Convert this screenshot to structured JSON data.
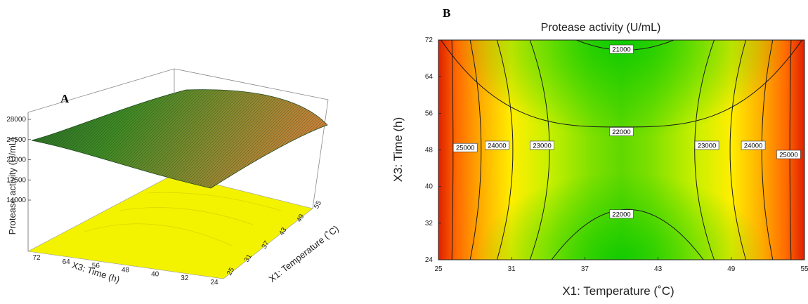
{
  "chart_data": [
    {
      "type": "surface3d",
      "panel_label": "A",
      "title": "",
      "xlabel": "X1: Temperature (˚C)",
      "ylabel": "X3: Time (h)",
      "zlabel": "Protease activity (U/mL)",
      "x_ticks": [
        "25",
        "31",
        "37",
        "43",
        "49",
        "55"
      ],
      "y_ticks": [
        "24",
        "32",
        "40",
        "48",
        "56",
        "64",
        "72"
      ],
      "z_ticks": [
        "14000",
        "17500",
        "21000",
        "24500",
        "28000"
      ],
      "xlim": [
        25,
        55
      ],
      "ylim": [
        24,
        72
      ],
      "zlim": [
        14000,
        28000
      ],
      "surface_colors": {
        "low": "#1a7a1a",
        "high": "#c8782a",
        "floor": "#f2f200"
      }
    },
    {
      "type": "contour",
      "panel_label": "B",
      "title": "Protease activity (U/mL)",
      "xlabel": "X1: Temperature (˚C)",
      "ylabel": "X3: Time (h)",
      "x_ticks": [
        "25",
        "31",
        "37",
        "43",
        "49",
        "55"
      ],
      "y_ticks": [
        "24",
        "32",
        "40",
        "48",
        "56",
        "64",
        "72"
      ],
      "xlim": [
        25,
        55
      ],
      "ylim": [
        24,
        72
      ],
      "levels": [
        21000,
        22000,
        23000,
        24000,
        25000
      ],
      "contour_labels": [
        {
          "text": "21000",
          "x": 40,
          "y": 70
        },
        {
          "text": "22000",
          "x": 40,
          "y": 52
        },
        {
          "text": "22000",
          "x": 40,
          "y": 34
        },
        {
          "text": "23000",
          "x": 33.5,
          "y": 49
        },
        {
          "text": "24000",
          "x": 29.8,
          "y": 49
        },
        {
          "text": "25000",
          "x": 27.2,
          "y": 48.5
        },
        {
          "text": "23000",
          "x": 47,
          "y": 49
        },
        {
          "text": "24000",
          "x": 50.8,
          "y": 49
        },
        {
          "text": "25000",
          "x": 53.7,
          "y": 47
        }
      ],
      "color_scale": [
        "#00cc00",
        "#ffff00",
        "#ff8c00",
        "#e02000"
      ]
    }
  ]
}
